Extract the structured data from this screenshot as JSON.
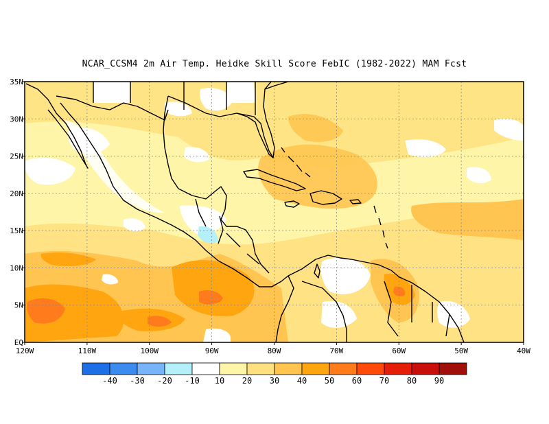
{
  "title": "NCAR_CCSM4  2m Air Temp. Heidke Skill Score FebIC (1982-2022) MAM Fcst",
  "chart_data": {
    "type": "heatmap",
    "title": "NCAR_CCSM4  2m Air Temp. Heidke Skill Score FebIC (1982-2022) MAM Fcst",
    "x_range": [
      -120,
      -40
    ],
    "y_range": [
      0,
      35
    ],
    "x_ticks": [
      {
        "value": -120,
        "label": "120W"
      },
      {
        "value": -110,
        "label": "110W"
      },
      {
        "value": -100,
        "label": "100W"
      },
      {
        "value": -90,
        "label": "90W"
      },
      {
        "value": -80,
        "label": "80W"
      },
      {
        "value": -70,
        "label": "70W"
      },
      {
        "value": -60,
        "label": "60W"
      },
      {
        "value": -50,
        "label": "50W"
      },
      {
        "value": -40,
        "label": "40W"
      }
    ],
    "y_ticks": [
      {
        "value": 0,
        "label": "EQ"
      },
      {
        "value": 5,
        "label": "5N"
      },
      {
        "value": 10,
        "label": "10N"
      },
      {
        "value": 15,
        "label": "15N"
      },
      {
        "value": 20,
        "label": "20N"
      },
      {
        "value": 25,
        "label": "25N"
      },
      {
        "value": 30,
        "label": "30N"
      },
      {
        "value": 35,
        "label": "35N"
      }
    ],
    "grid": true,
    "colorbar": {
      "colors": [
        "#1e6ee6",
        "#3c8cf0",
        "#78b4f8",
        "#b4f0fa",
        "#ffffff",
        "#fff5a8",
        "#ffe080",
        "#ffc550",
        "#ffa510",
        "#ff7b1c",
        "#ff4a0a",
        "#e51e0a",
        "#c80f0a",
        "#a00f0a"
      ],
      "labels": [
        "-40",
        "-30",
        "-20",
        "-10",
        "10",
        "20",
        "30",
        "40",
        "50",
        "60",
        "70",
        "80",
        "90"
      ]
    },
    "regions": [
      {
        "lon": -114,
        "lat": 3,
        "score": 60
      },
      {
        "lon": -110,
        "lat": 6,
        "score": 50
      },
      {
        "lon": -101,
        "lat": 3,
        "score": 50
      },
      {
        "lon": -92,
        "lat": 8,
        "score": 55
      },
      {
        "lon": -95,
        "lat": 3,
        "score": 50
      },
      {
        "lon": -84,
        "lat": 3,
        "score": 45
      },
      {
        "lon": -62,
        "lat": 8,
        "score": 50
      },
      {
        "lon": -55,
        "lat": 5,
        "score": 40
      },
      {
        "lon": -45,
        "lat": 15,
        "score": 40
      },
      {
        "lon": -70,
        "lat": 18,
        "score": 40
      },
      {
        "lon": -76,
        "lat": 25,
        "score": 40
      },
      {
        "lon": -90,
        "lat": 27,
        "score": 20
      },
      {
        "lon": -107,
        "lat": 15,
        "score": 30
      },
      {
        "lon": -112,
        "lat": 25,
        "score": 10
      },
      {
        "lon": -70,
        "lat": 5,
        "score": 10
      },
      {
        "lon": -65,
        "lat": 32,
        "score": 30
      },
      {
        "lon": -47,
        "lat": 28,
        "score": 20
      },
      {
        "lon": -115,
        "lat": 33,
        "score": 30
      }
    ]
  }
}
